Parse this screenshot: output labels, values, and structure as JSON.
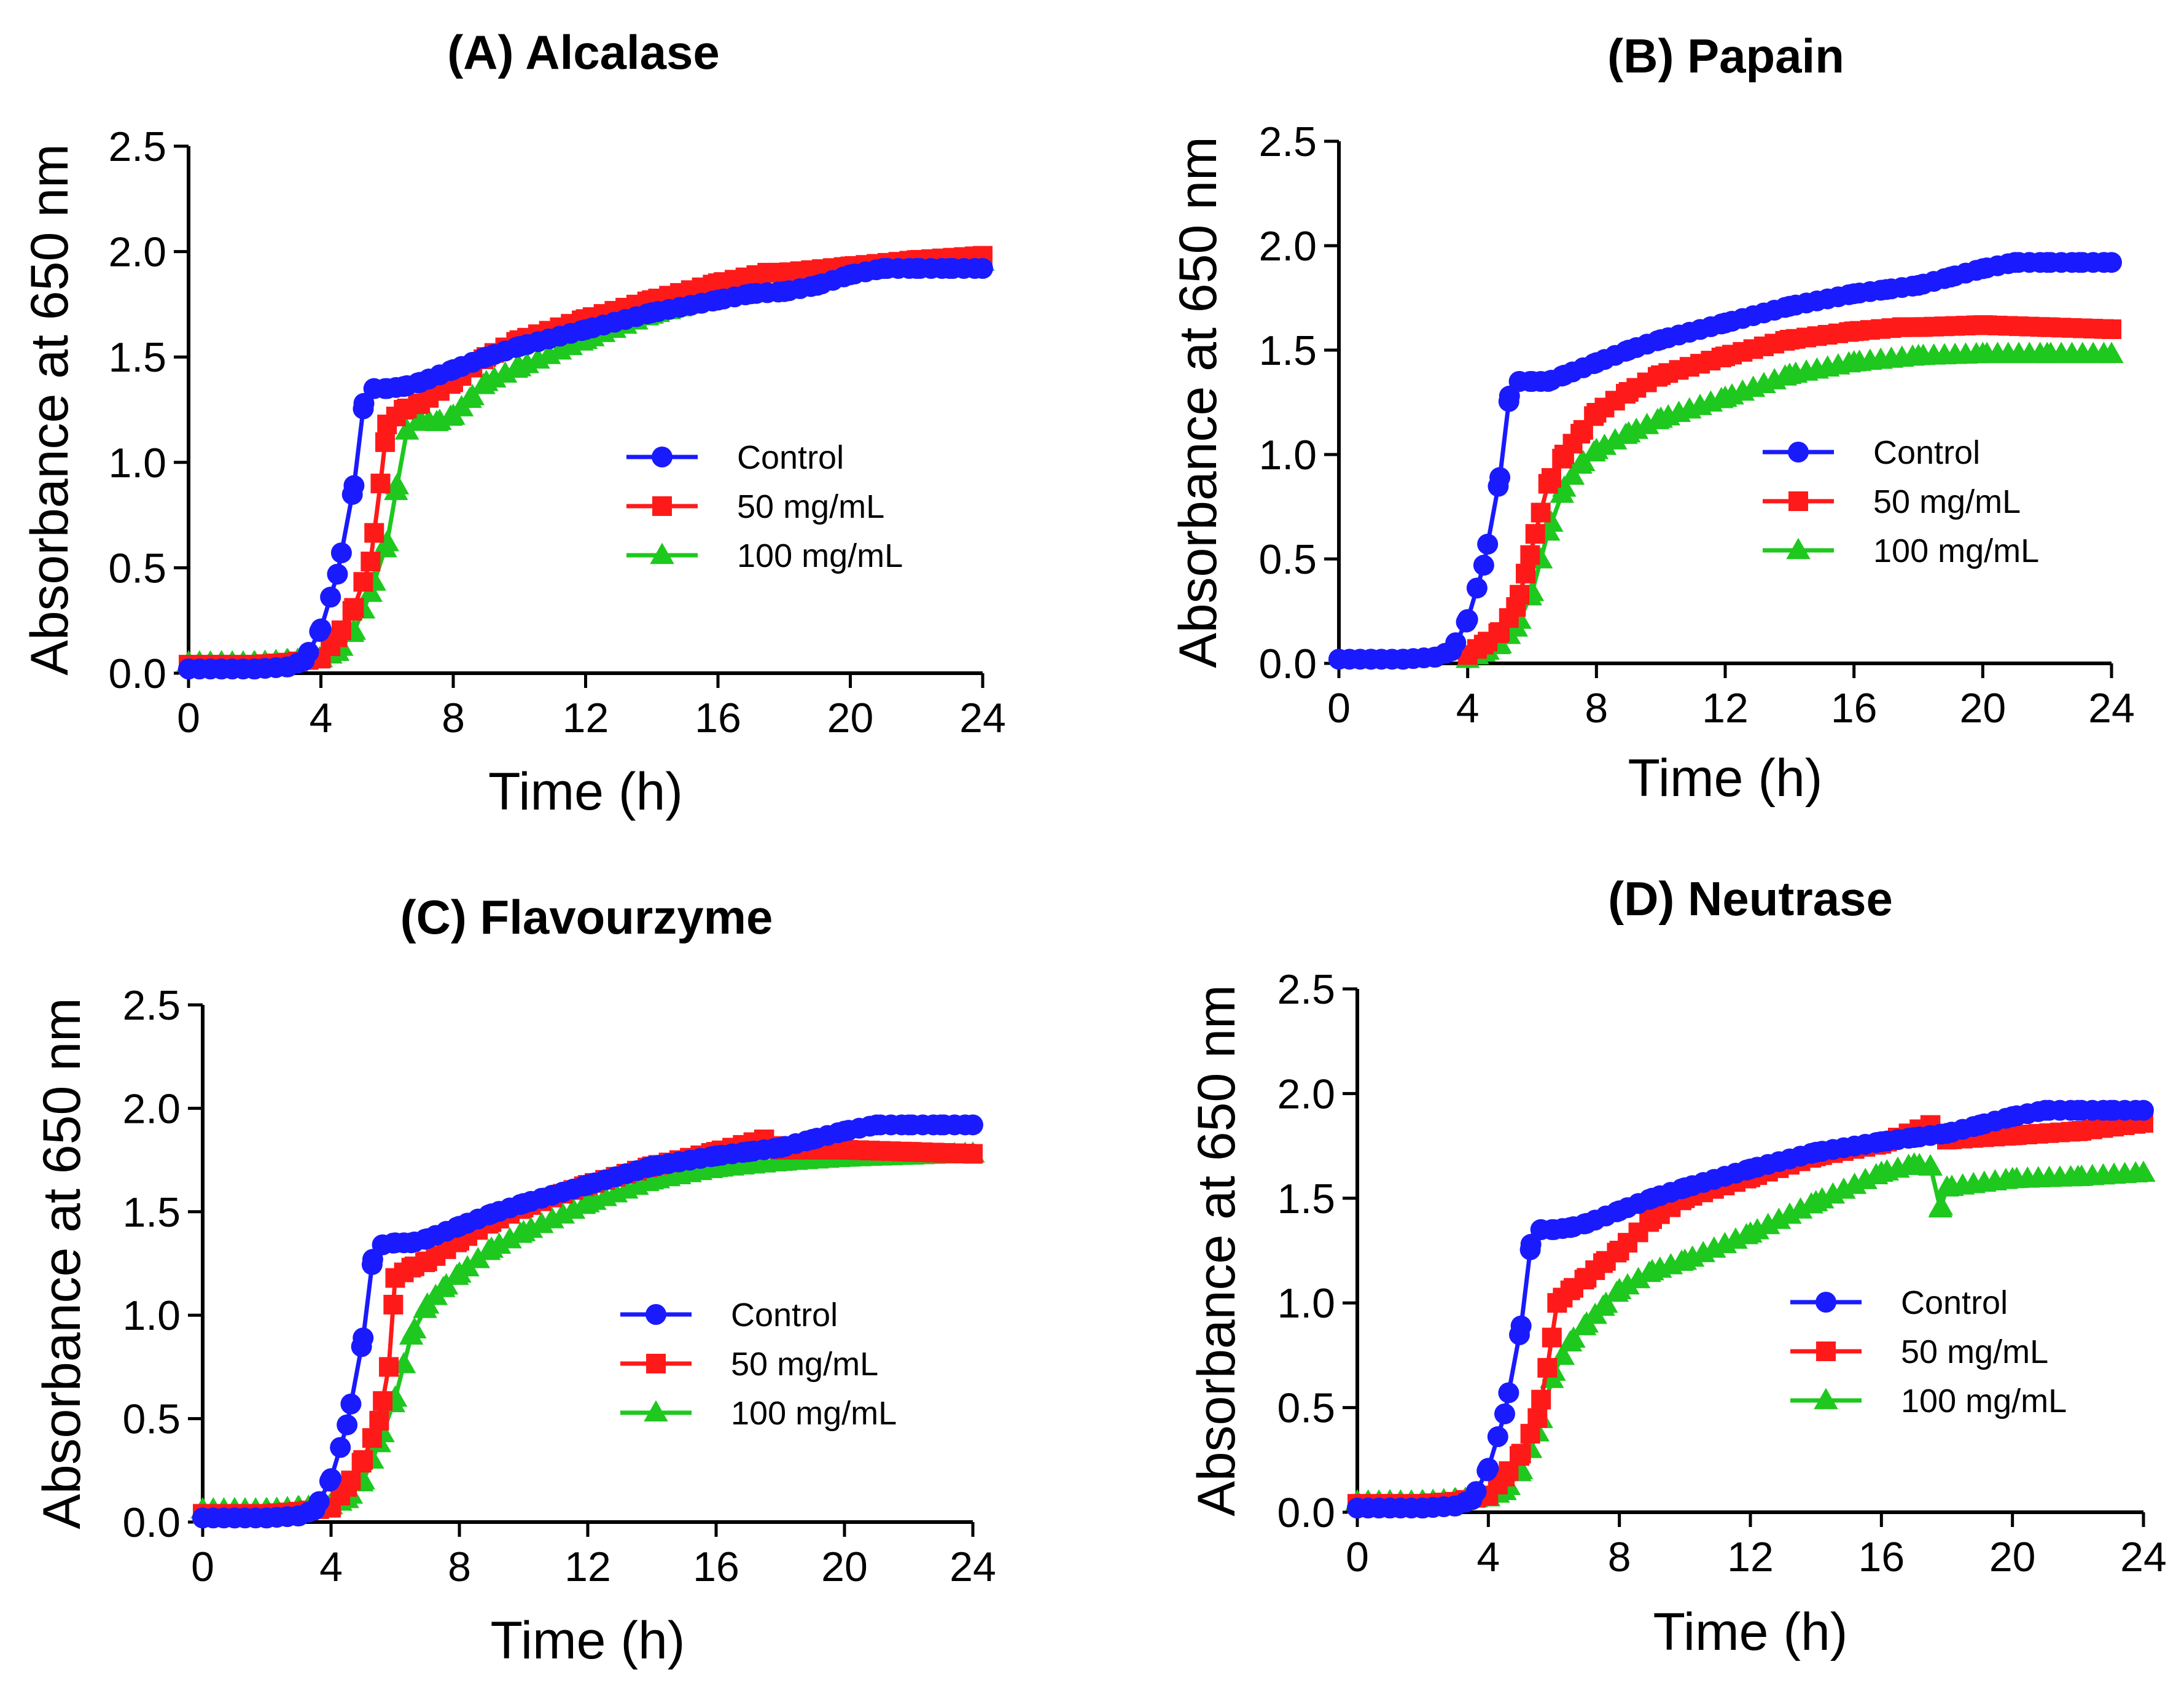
{
  "figure": {
    "panel_ids": [
      "A",
      "B",
      "C",
      "D"
    ]
  },
  "chart_data": [
    {
      "id": "A",
      "type": "line",
      "title": "(A)  Alcalase",
      "xlabel": "Time (h)",
      "ylabel": "Absorbance at 650 nm",
      "xlim": [
        0,
        24
      ],
      "ylim": [
        0,
        2.5
      ],
      "xticks": [
        0,
        4,
        8,
        12,
        16,
        20,
        24
      ],
      "yticks": [
        0.0,
        0.5,
        1.0,
        1.5,
        2.0,
        2.5
      ],
      "xtick_labels": [
        "0",
        "4",
        "8",
        "12",
        "16",
        "20",
        "24"
      ],
      "ytick_labels": [
        "0.0",
        "0.5",
        "1.0",
        "1.5",
        "2.0",
        "2.5"
      ],
      "legend_position": "right-middle",
      "series": [
        {
          "name": "Control",
          "color": "#1a1aff",
          "marker": "circle",
          "x": [
            0,
            1,
            2,
            3,
            3.5,
            4,
            4.5,
            5,
            5.3,
            5.6,
            6,
            6.5,
            7,
            8,
            9,
            10,
            12,
            14,
            16,
            17,
            18,
            19,
            20,
            21,
            22,
            23,
            24
          ],
          "y": [
            0.02,
            0.02,
            0.02,
            0.03,
            0.06,
            0.21,
            0.47,
            0.89,
            1.28,
            1.35,
            1.35,
            1.36,
            1.38,
            1.44,
            1.5,
            1.55,
            1.63,
            1.71,
            1.77,
            1.8,
            1.81,
            1.84,
            1.89,
            1.92,
            1.92,
            1.92,
            1.92
          ]
        },
        {
          "name": "50 mg/mL",
          "color": "#ff1a1a",
          "marker": "square",
          "x": [
            0,
            1,
            2,
            3,
            4,
            4.5,
            5,
            5.5,
            5.8,
            6,
            6.5,
            7,
            8,
            9,
            10,
            12,
            14,
            16,
            17.5,
            18,
            20,
            22,
            24
          ],
          "y": [
            0.04,
            0.04,
            0.04,
            0.05,
            0.07,
            0.17,
            0.31,
            0.53,
            0.9,
            1.18,
            1.25,
            1.28,
            1.38,
            1.5,
            1.58,
            1.68,
            1.77,
            1.85,
            1.9,
            1.9,
            1.93,
            1.96,
            1.98
          ]
        },
        {
          "name": "100 mg/mL",
          "color": "#1ec81e",
          "marker": "triangle",
          "x": [
            0,
            1,
            2,
            3,
            4,
            4.5,
            5,
            5.5,
            6,
            6.3,
            6.6,
            7,
            7.5,
            8,
            8.5,
            9,
            10,
            12,
            14,
            16,
            18,
            20,
            22,
            24
          ],
          "y": [
            0.05,
            0.05,
            0.05,
            0.06,
            0.07,
            0.1,
            0.2,
            0.38,
            0.62,
            0.89,
            1.15,
            1.2,
            1.19,
            1.22,
            1.3,
            1.38,
            1.45,
            1.58,
            1.7,
            1.78,
            1.84,
            1.9,
            1.93,
            1.95
          ]
        }
      ]
    },
    {
      "id": "B",
      "type": "line",
      "title": "(B)  Papain",
      "xlabel": "Time (h)",
      "ylabel": "Absorbance at 650 nm",
      "xlim": [
        0,
        24
      ],
      "ylim": [
        0,
        2.5
      ],
      "xticks": [
        0,
        4,
        8,
        12,
        16,
        20,
        24
      ],
      "yticks": [
        0.0,
        0.5,
        1.0,
        1.5,
        2.0,
        2.5
      ],
      "xtick_labels": [
        "0",
        "4",
        "8",
        "12",
        "16",
        "20",
        "24"
      ],
      "ytick_labels": [
        "0.0",
        "0.5",
        "1.0",
        "1.5",
        "2.0",
        "2.5"
      ],
      "legend_position": "right-middle",
      "series": [
        {
          "name": "Control",
          "color": "#1a1aff",
          "marker": "circle",
          "x": [
            0,
            1,
            2,
            3,
            3.5,
            4,
            4.5,
            5,
            5.3,
            5.6,
            6,
            6.5,
            7,
            8,
            9,
            10,
            12,
            14,
            16,
            17,
            18,
            19,
            20,
            21,
            22,
            23,
            24
          ],
          "y": [
            0.02,
            0.02,
            0.02,
            0.03,
            0.06,
            0.21,
            0.47,
            0.89,
            1.28,
            1.35,
            1.35,
            1.35,
            1.38,
            1.44,
            1.5,
            1.55,
            1.63,
            1.71,
            1.77,
            1.79,
            1.81,
            1.85,
            1.89,
            1.92,
            1.92,
            1.92,
            1.92
          ]
        },
        {
          "name": "50 mg/mL",
          "color": "#ff1a1a",
          "marker": "square",
          "x": [
            4,
            4.5,
            5,
            5.5,
            5.8,
            6.1,
            6.5,
            7,
            7.5,
            8,
            9,
            10,
            12,
            14,
            16,
            17.5,
            18,
            20,
            22,
            24
          ],
          "y": [
            0.04,
            0.09,
            0.15,
            0.27,
            0.43,
            0.62,
            0.86,
            1.0,
            1.1,
            1.2,
            1.3,
            1.38,
            1.47,
            1.55,
            1.59,
            1.61,
            1.61,
            1.62,
            1.61,
            1.6
          ]
        },
        {
          "name": "100 mg/mL",
          "color": "#1ec81e",
          "marker": "triangle",
          "x": [
            4,
            4.5,
            5,
            5.5,
            6,
            6.5,
            7,
            7.5,
            8,
            9,
            10,
            12,
            14,
            16,
            18,
            20,
            22,
            24
          ],
          "y": [
            0.02,
            0.05,
            0.09,
            0.17,
            0.34,
            0.63,
            0.84,
            0.95,
            1.02,
            1.1,
            1.17,
            1.27,
            1.38,
            1.44,
            1.47,
            1.48,
            1.48,
            1.48
          ]
        }
      ]
    },
    {
      "id": "C",
      "type": "line",
      "title": "(C)  Flavourzyme",
      "xlabel": "Time (h)",
      "ylabel": "Absorbance at 650 nm",
      "xlim": [
        0,
        24
      ],
      "ylim": [
        0,
        2.5
      ],
      "xticks": [
        0,
        4,
        8,
        12,
        16,
        20,
        24
      ],
      "yticks": [
        0.0,
        0.5,
        1.0,
        1.5,
        2.0,
        2.5
      ],
      "xtick_labels": [
        "0",
        "4",
        "8",
        "12",
        "16",
        "20",
        "24"
      ],
      "ytick_labels": [
        "0.0",
        "0.5",
        "1.0",
        "1.5",
        "2.0",
        "2.5"
      ],
      "legend_position": "right-middle",
      "series": [
        {
          "name": "Control",
          "color": "#1a1aff",
          "marker": "circle",
          "x": [
            0,
            1,
            2,
            3,
            3.5,
            4,
            4.5,
            5,
            5.3,
            5.6,
            6,
            6.5,
            7,
            8,
            9,
            10,
            12,
            14,
            16,
            17,
            18,
            19,
            20,
            21,
            22,
            23,
            24
          ],
          "y": [
            0.02,
            0.02,
            0.02,
            0.03,
            0.06,
            0.21,
            0.47,
            0.89,
            1.27,
            1.34,
            1.35,
            1.35,
            1.37,
            1.43,
            1.49,
            1.54,
            1.63,
            1.72,
            1.77,
            1.79,
            1.81,
            1.85,
            1.89,
            1.92,
            1.92,
            1.92,
            1.92
          ]
        },
        {
          "name": "50 mg/mL",
          "color": "#ff1a1a",
          "marker": "square",
          "x": [
            0,
            1,
            2,
            3,
            4,
            4.5,
            5,
            5.5,
            5.8,
            6,
            6.5,
            7,
            8,
            9,
            10,
            12,
            14,
            16,
            17.5,
            18,
            20,
            22,
            24
          ],
          "y": [
            0.04,
            0.04,
            0.04,
            0.05,
            0.07,
            0.17,
            0.3,
            0.49,
            0.75,
            1.18,
            1.23,
            1.26,
            1.36,
            1.45,
            1.52,
            1.63,
            1.72,
            1.79,
            1.85,
            1.8,
            1.8,
            1.79,
            1.78
          ]
        },
        {
          "name": "100 mg/mL",
          "color": "#1ec81e",
          "marker": "triangle",
          "x": [
            0,
            1,
            2,
            3,
            4,
            4.5,
            5,
            5.5,
            6,
            6.5,
            7,
            7.5,
            8,
            9,
            10,
            12,
            14,
            16,
            18,
            20,
            22,
            24
          ],
          "y": [
            0.06,
            0.06,
            0.06,
            0.07,
            0.08,
            0.11,
            0.2,
            0.38,
            0.6,
            0.9,
            1.05,
            1.13,
            1.2,
            1.32,
            1.4,
            1.54,
            1.65,
            1.71,
            1.74,
            1.76,
            1.77,
            1.78
          ]
        }
      ]
    },
    {
      "id": "D",
      "type": "line",
      "title": "(D)  Neutrase",
      "xlabel": "Time (h)",
      "ylabel": "Absorbance at 650 nm",
      "xlim": [
        0,
        24
      ],
      "ylim": [
        0,
        2.5
      ],
      "xticks": [
        0,
        4,
        8,
        12,
        16,
        20,
        24
      ],
      "yticks": [
        0.0,
        0.5,
        1.0,
        1.5,
        2.0,
        2.5
      ],
      "xtick_labels": [
        "0",
        "4",
        "8",
        "12",
        "16",
        "20",
        "24"
      ],
      "ytick_labels": [
        "0.0",
        "0.5",
        "1.0",
        "1.5",
        "2.0",
        "2.5"
      ],
      "legend_position": "right-middle",
      "series": [
        {
          "name": "Control",
          "color": "#1a1aff",
          "marker": "circle",
          "x": [
            0,
            1,
            2,
            3,
            3.5,
            4,
            4.5,
            5,
            5.3,
            5.6,
            6,
            6.5,
            7,
            8,
            9,
            10,
            12,
            14,
            16,
            17,
            18,
            19,
            20,
            21,
            22,
            23,
            24
          ],
          "y": [
            0.02,
            0.02,
            0.02,
            0.03,
            0.06,
            0.21,
            0.47,
            0.89,
            1.28,
            1.35,
            1.35,
            1.36,
            1.38,
            1.44,
            1.5,
            1.55,
            1.64,
            1.72,
            1.77,
            1.79,
            1.81,
            1.85,
            1.89,
            1.92,
            1.92,
            1.92,
            1.92
          ]
        },
        {
          "name": "50 mg/mL",
          "color": "#ff1a1a",
          "marker": "square",
          "x": [
            0,
            1,
            2,
            3,
            4,
            4.5,
            5,
            5.5,
            5.8,
            6.1,
            6.5,
            7,
            7.5,
            8,
            9,
            10,
            12,
            14,
            16,
            17.5,
            18,
            20,
            22,
            24
          ],
          "y": [
            0.04,
            0.04,
            0.04,
            0.05,
            0.08,
            0.17,
            0.28,
            0.45,
            0.69,
            1.0,
            1.06,
            1.12,
            1.19,
            1.25,
            1.4,
            1.5,
            1.6,
            1.7,
            1.76,
            1.85,
            1.78,
            1.8,
            1.82,
            1.86
          ]
        },
        {
          "name": "100 mg/mL",
          "color": "#1ec81e",
          "marker": "triangle",
          "x": [
            0,
            1,
            2,
            3,
            4,
            4.5,
            5,
            5.5,
            6,
            6.5,
            7,
            7.5,
            8,
            9,
            10,
            12,
            14,
            16,
            17,
            17.5,
            17.8,
            18,
            20,
            22,
            24
          ],
          "y": [
            0.05,
            0.05,
            0.05,
            0.06,
            0.07,
            0.1,
            0.2,
            0.38,
            0.67,
            0.81,
            0.9,
            0.98,
            1.06,
            1.15,
            1.2,
            1.33,
            1.48,
            1.62,
            1.66,
            1.65,
            1.45,
            1.55,
            1.59,
            1.6,
            1.62
          ]
        }
      ]
    }
  ]
}
